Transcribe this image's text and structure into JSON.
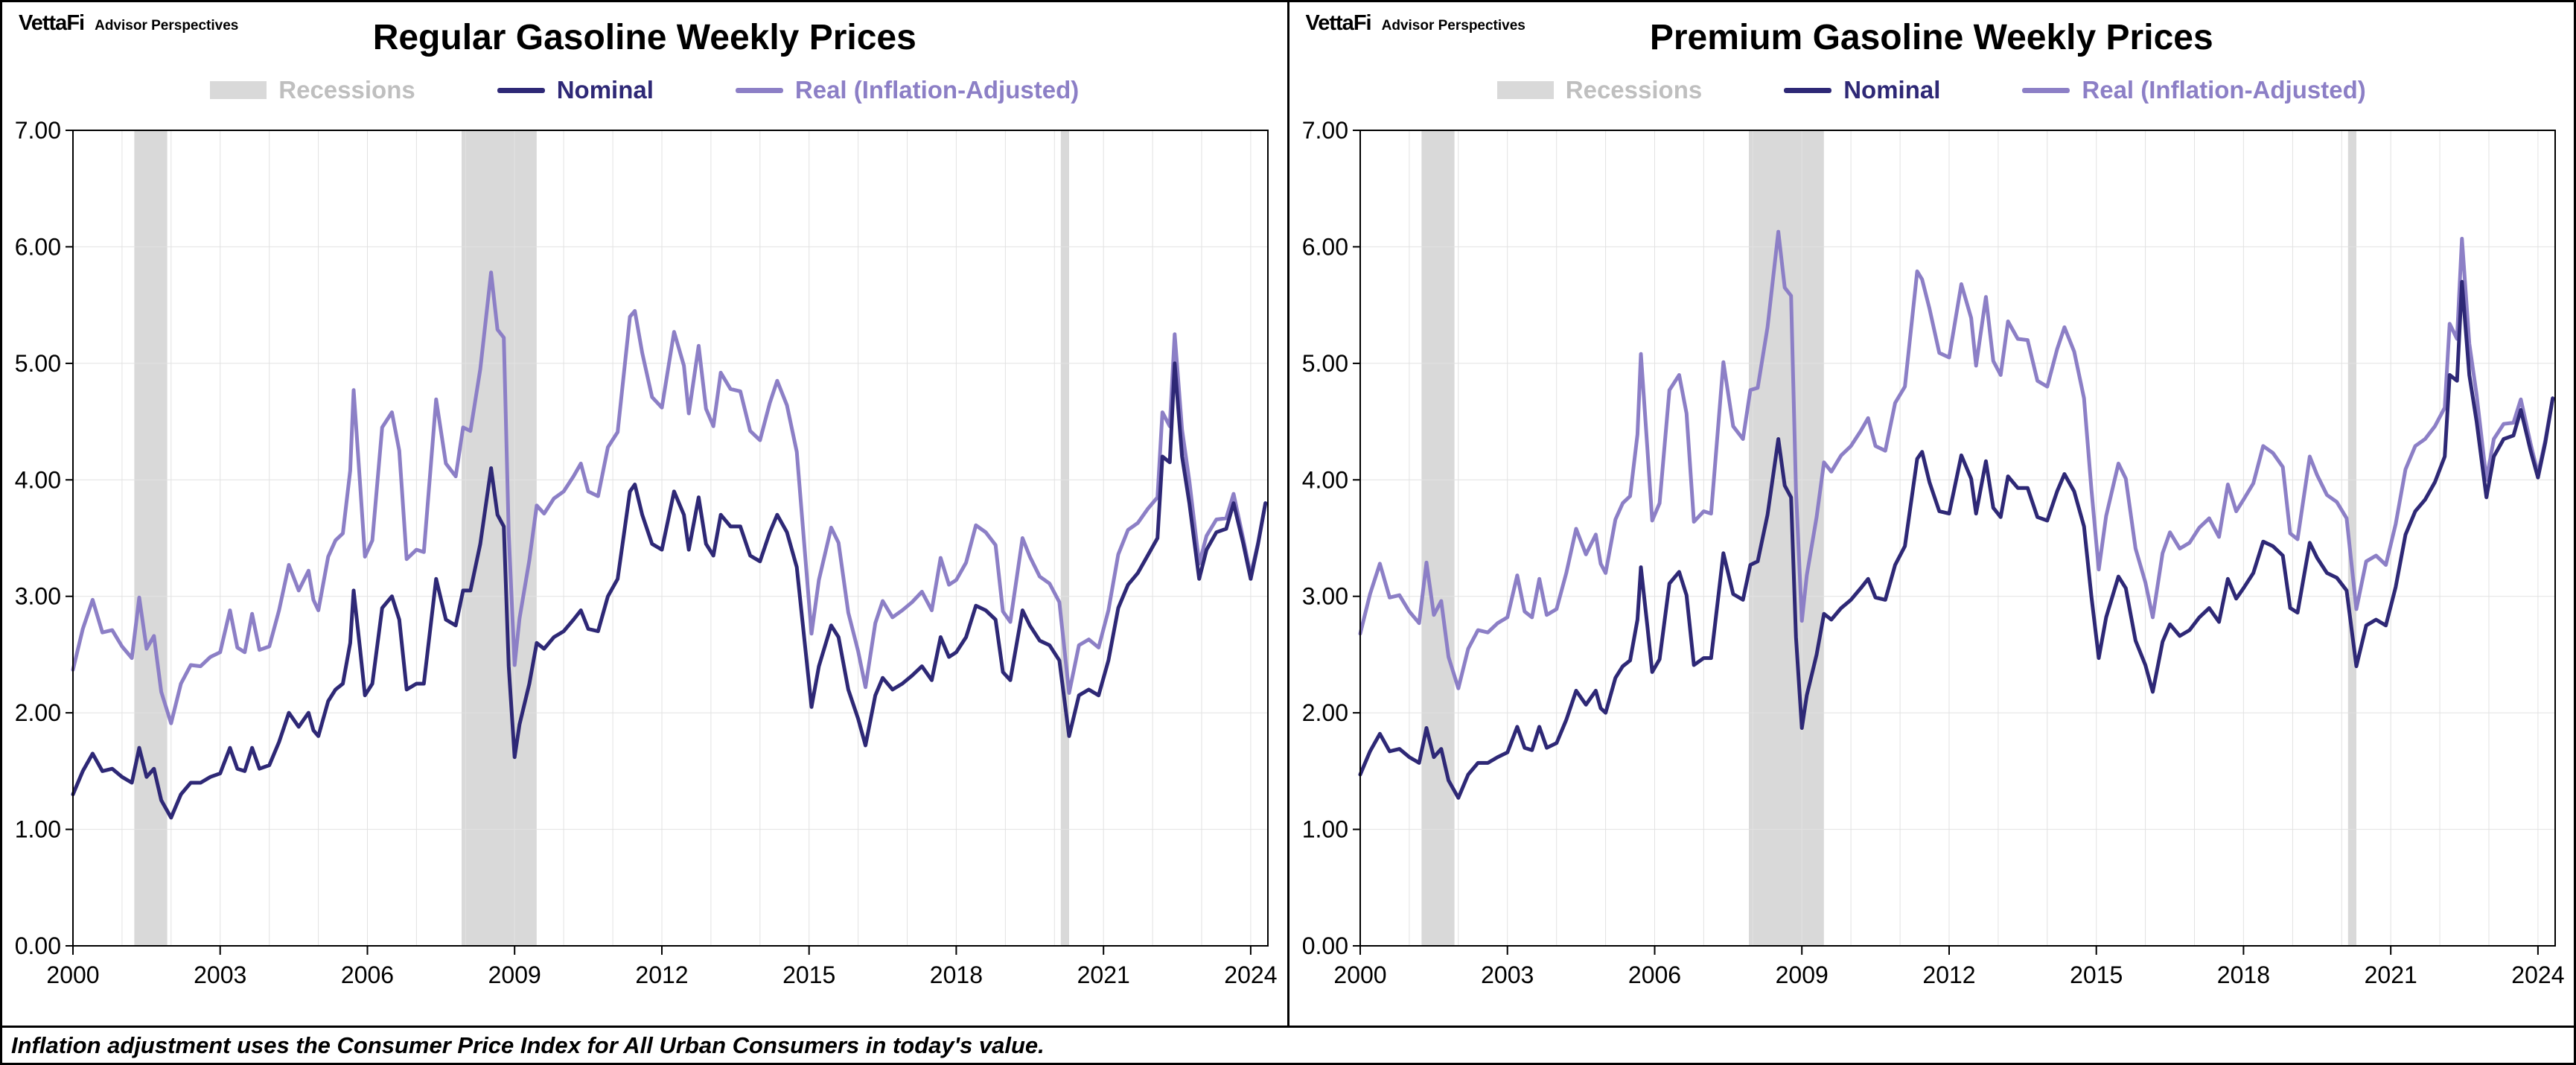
{
  "branding": {
    "logo": "VettaFi",
    "subtitle": "Advisor Perspectives"
  },
  "legend": {
    "recessions": "Recessions",
    "nominal": "Nominal",
    "real": "Real (Inflation-Adjusted)"
  },
  "footer": {
    "note": "Inflation adjustment uses the Consumer Price Index for All Urban Consumers in today's value."
  },
  "colors": {
    "nominal": "#2E2876",
    "real": "#8C7FC6",
    "recession_band": "#D9D9D9",
    "recession_text": "#BFBFBF",
    "grid": "#E2E2E2",
    "axis": "#000000"
  },
  "chart_data": [
    {
      "type": "line",
      "title": "Regular Gasoline Weekly Prices",
      "xlabel": "",
      "ylabel": "",
      "xlim": [
        2000,
        2024.35
      ],
      "ylim": [
        0,
        7
      ],
      "x_ticks": [
        2000,
        2003,
        2006,
        2009,
        2012,
        2015,
        2018,
        2021,
        2024
      ],
      "y_ticks": [
        0,
        1,
        2,
        3,
        4,
        5,
        6,
        7
      ],
      "grid": true,
      "legend_position": "top",
      "recession_bands": [
        [
          2001.25,
          2001.92
        ],
        [
          2007.92,
          2009.45
        ],
        [
          2020.13,
          2020.3
        ]
      ],
      "x": [
        2000.0,
        2000.2,
        2000.4,
        2000.6,
        2000.8,
        2001.0,
        2001.2,
        2001.35,
        2001.5,
        2001.65,
        2001.8,
        2002.0,
        2002.2,
        2002.4,
        2002.6,
        2002.8,
        2003.0,
        2003.2,
        2003.35,
        2003.5,
        2003.65,
        2003.8,
        2004.0,
        2004.2,
        2004.4,
        2004.6,
        2004.8,
        2004.9,
        2005.0,
        2005.2,
        2005.35,
        2005.5,
        2005.65,
        2005.72,
        2005.85,
        2005.95,
        2006.1,
        2006.3,
        2006.5,
        2006.65,
        2006.8,
        2007.0,
        2007.15,
        2007.4,
        2007.6,
        2007.8,
        2007.95,
        2008.1,
        2008.3,
        2008.52,
        2008.65,
        2008.78,
        2008.88,
        2009.0,
        2009.1,
        2009.3,
        2009.45,
        2009.6,
        2009.8,
        2010.0,
        2010.2,
        2010.35,
        2010.5,
        2010.7,
        2010.9,
        2011.1,
        2011.35,
        2011.45,
        2011.6,
        2011.8,
        2012.0,
        2012.25,
        2012.45,
        2012.55,
        2012.75,
        2012.9,
        2013.05,
        2013.2,
        2013.4,
        2013.6,
        2013.8,
        2014.0,
        2014.2,
        2014.35,
        2014.55,
        2014.75,
        2014.9,
        2015.05,
        2015.2,
        2015.45,
        2015.6,
        2015.8,
        2016.0,
        2016.15,
        2016.35,
        2016.5,
        2016.7,
        2016.9,
        2017.1,
        2017.3,
        2017.5,
        2017.68,
        2017.85,
        2018.0,
        2018.2,
        2018.4,
        2018.6,
        2018.8,
        2018.95,
        2019.1,
        2019.35,
        2019.5,
        2019.7,
        2019.9,
        2020.1,
        2020.3,
        2020.5,
        2020.7,
        2020.9,
        2021.1,
        2021.3,
        2021.5,
        2021.7,
        2021.9,
        2022.1,
        2022.2,
        2022.35,
        2022.45,
        2022.6,
        2022.75,
        2022.95,
        2023.1,
        2023.3,
        2023.5,
        2023.65,
        2023.85,
        2024.0,
        2024.15,
        2024.3
      ],
      "series": [
        {
          "name": "Nominal",
          "color_key": "nominal",
          "values": [
            1.3,
            1.5,
            1.65,
            1.5,
            1.52,
            1.45,
            1.4,
            1.7,
            1.45,
            1.52,
            1.25,
            1.1,
            1.3,
            1.4,
            1.4,
            1.45,
            1.48,
            1.7,
            1.52,
            1.5,
            1.7,
            1.52,
            1.55,
            1.75,
            2.0,
            1.88,
            2.0,
            1.85,
            1.8,
            2.1,
            2.2,
            2.25,
            2.6,
            3.05,
            2.55,
            2.15,
            2.25,
            2.9,
            3.0,
            2.8,
            2.2,
            2.25,
            2.25,
            3.15,
            2.8,
            2.75,
            3.05,
            3.05,
            3.45,
            4.1,
            3.7,
            3.6,
            2.4,
            1.62,
            1.9,
            2.25,
            2.6,
            2.55,
            2.65,
            2.7,
            2.8,
            2.88,
            2.72,
            2.7,
            3.0,
            3.15,
            3.9,
            3.96,
            3.7,
            3.45,
            3.4,
            3.9,
            3.7,
            3.4,
            3.85,
            3.45,
            3.35,
            3.7,
            3.6,
            3.6,
            3.35,
            3.3,
            3.55,
            3.7,
            3.55,
            3.25,
            2.65,
            2.05,
            2.4,
            2.75,
            2.65,
            2.2,
            1.95,
            1.72,
            2.15,
            2.3,
            2.2,
            2.25,
            2.32,
            2.4,
            2.28,
            2.65,
            2.48,
            2.52,
            2.65,
            2.92,
            2.88,
            2.8,
            2.35,
            2.28,
            2.88,
            2.75,
            2.62,
            2.58,
            2.45,
            1.8,
            2.15,
            2.2,
            2.15,
            2.45,
            2.9,
            3.1,
            3.2,
            3.35,
            3.5,
            4.2,
            4.15,
            5.0,
            4.2,
            3.8,
            3.15,
            3.4,
            3.55,
            3.58,
            3.8,
            3.45,
            3.15,
            3.45,
            3.8
          ]
        },
        {
          "name": "Real (Inflation-Adjusted)",
          "color_key": "real",
          "values": [
            2.37,
            2.72,
            2.97,
            2.69,
            2.71,
            2.57,
            2.47,
            2.99,
            2.55,
            2.66,
            2.18,
            1.91,
            2.25,
            2.41,
            2.4,
            2.48,
            2.52,
            2.88,
            2.56,
            2.52,
            2.85,
            2.54,
            2.57,
            2.88,
            3.27,
            3.05,
            3.22,
            2.97,
            2.88,
            3.34,
            3.48,
            3.54,
            4.08,
            4.77,
            3.97,
            3.34,
            3.48,
            4.45,
            4.58,
            4.25,
            3.32,
            3.4,
            3.38,
            4.69,
            4.14,
            4.03,
            4.45,
            4.42,
            4.95,
            5.78,
            5.29,
            5.22,
            3.54,
            2.41,
            2.81,
            3.31,
            3.78,
            3.71,
            3.84,
            3.9,
            4.03,
            4.14,
            3.9,
            3.86,
            4.28,
            4.41,
            5.4,
            5.45,
            5.09,
            4.71,
            4.62,
            5.27,
            4.98,
            4.57,
            5.15,
            4.61,
            4.46,
            4.92,
            4.78,
            4.76,
            4.42,
            4.34,
            4.66,
            4.85,
            4.64,
            4.24,
            3.46,
            2.68,
            3.14,
            3.59,
            3.46,
            2.86,
            2.53,
            2.22,
            2.77,
            2.96,
            2.82,
            2.88,
            2.95,
            3.04,
            2.88,
            3.33,
            3.1,
            3.14,
            3.29,
            3.61,
            3.55,
            3.44,
            2.87,
            2.78,
            3.5,
            3.34,
            3.17,
            3.11,
            2.95,
            2.17,
            2.58,
            2.63,
            2.56,
            2.88,
            3.36,
            3.57,
            3.63,
            3.75,
            3.85,
            4.58,
            4.46,
            5.25,
            4.43,
            3.99,
            3.28,
            3.52,
            3.66,
            3.67,
            3.88,
            3.49,
            3.18,
            3.46,
            3.8
          ]
        }
      ]
    },
    {
      "type": "line",
      "title": "Premium Gasoline Weekly Prices",
      "xlabel": "",
      "ylabel": "",
      "xlim": [
        2000,
        2024.35
      ],
      "ylim": [
        0,
        7
      ],
      "x_ticks": [
        2000,
        2003,
        2006,
        2009,
        2012,
        2015,
        2018,
        2021,
        2024
      ],
      "y_ticks": [
        0,
        1,
        2,
        3,
        4,
        5,
        6,
        7
      ],
      "grid": true,
      "legend_position": "top",
      "recession_bands": [
        [
          2001.25,
          2001.92
        ],
        [
          2007.92,
          2009.45
        ],
        [
          2020.13,
          2020.3
        ]
      ],
      "x": [
        2000.0,
        2000.2,
        2000.4,
        2000.6,
        2000.8,
        2001.0,
        2001.2,
        2001.35,
        2001.5,
        2001.65,
        2001.8,
        2002.0,
        2002.2,
        2002.4,
        2002.6,
        2002.8,
        2003.0,
        2003.2,
        2003.35,
        2003.5,
        2003.65,
        2003.8,
        2004.0,
        2004.2,
        2004.4,
        2004.6,
        2004.8,
        2004.9,
        2005.0,
        2005.2,
        2005.35,
        2005.5,
        2005.65,
        2005.72,
        2005.85,
        2005.95,
        2006.1,
        2006.3,
        2006.5,
        2006.65,
        2006.8,
        2007.0,
        2007.15,
        2007.4,
        2007.6,
        2007.8,
        2007.95,
        2008.1,
        2008.3,
        2008.52,
        2008.65,
        2008.78,
        2008.88,
        2009.0,
        2009.1,
        2009.3,
        2009.45,
        2009.6,
        2009.8,
        2010.0,
        2010.2,
        2010.35,
        2010.5,
        2010.7,
        2010.9,
        2011.1,
        2011.35,
        2011.45,
        2011.6,
        2011.8,
        2012.0,
        2012.25,
        2012.45,
        2012.55,
        2012.75,
        2012.9,
        2013.05,
        2013.2,
        2013.4,
        2013.6,
        2013.8,
        2014.0,
        2014.2,
        2014.35,
        2014.55,
        2014.75,
        2014.9,
        2015.05,
        2015.2,
        2015.45,
        2015.6,
        2015.8,
        2016.0,
        2016.15,
        2016.35,
        2016.5,
        2016.7,
        2016.9,
        2017.1,
        2017.3,
        2017.5,
        2017.68,
        2017.85,
        2018.0,
        2018.2,
        2018.4,
        2018.6,
        2018.8,
        2018.95,
        2019.1,
        2019.35,
        2019.5,
        2019.7,
        2019.9,
        2020.1,
        2020.3,
        2020.5,
        2020.7,
        2020.9,
        2021.1,
        2021.3,
        2021.5,
        2021.7,
        2021.9,
        2022.1,
        2022.2,
        2022.35,
        2022.45,
        2022.6,
        2022.75,
        2022.95,
        2023.1,
        2023.3,
        2023.5,
        2023.65,
        2023.85,
        2024.0,
        2024.15,
        2024.3
      ],
      "series": [
        {
          "name": "Nominal",
          "color_key": "nominal",
          "values": [
            1.47,
            1.67,
            1.82,
            1.67,
            1.69,
            1.62,
            1.57,
            1.87,
            1.62,
            1.69,
            1.42,
            1.27,
            1.47,
            1.57,
            1.57,
            1.62,
            1.66,
            1.88,
            1.7,
            1.68,
            1.88,
            1.7,
            1.74,
            1.94,
            2.19,
            2.07,
            2.19,
            2.04,
            2.0,
            2.3,
            2.4,
            2.45,
            2.8,
            3.25,
            2.75,
            2.35,
            2.46,
            3.11,
            3.21,
            3.01,
            2.41,
            2.47,
            2.47,
            3.37,
            3.02,
            2.97,
            3.27,
            3.3,
            3.7,
            4.35,
            3.95,
            3.85,
            2.65,
            1.87,
            2.15,
            2.5,
            2.85,
            2.8,
            2.9,
            2.97,
            3.07,
            3.15,
            2.99,
            2.97,
            3.27,
            3.43,
            4.18,
            4.24,
            3.98,
            3.73,
            3.71,
            4.21,
            4.01,
            3.71,
            4.16,
            3.76,
            3.68,
            4.03,
            3.93,
            3.93,
            3.68,
            3.65,
            3.9,
            4.05,
            3.9,
            3.6,
            3.0,
            2.47,
            2.82,
            3.17,
            3.07,
            2.62,
            2.41,
            2.18,
            2.61,
            2.76,
            2.66,
            2.71,
            2.82,
            2.9,
            2.78,
            3.15,
            2.98,
            3.07,
            3.2,
            3.47,
            3.43,
            3.35,
            2.9,
            2.86,
            3.46,
            3.33,
            3.2,
            3.16,
            3.05,
            2.4,
            2.75,
            2.8,
            2.75,
            3.08,
            3.53,
            3.73,
            3.83,
            3.98,
            4.2,
            4.9,
            4.85,
            5.7,
            4.9,
            4.5,
            3.85,
            4.2,
            4.35,
            4.38,
            4.6,
            4.25,
            4.02,
            4.32,
            4.7
          ]
        },
        {
          "name": "Real (Inflation-Adjusted)",
          "color_key": "real",
          "values": [
            2.68,
            3.02,
            3.28,
            2.99,
            3.01,
            2.87,
            2.77,
            3.29,
            2.84,
            2.96,
            2.48,
            2.21,
            2.55,
            2.71,
            2.69,
            2.77,
            2.82,
            3.18,
            2.87,
            2.82,
            3.15,
            2.84,
            2.89,
            3.2,
            3.58,
            3.36,
            3.53,
            3.28,
            3.2,
            3.66,
            3.8,
            3.86,
            4.39,
            5.08,
            4.28,
            3.65,
            3.8,
            4.77,
            4.9,
            4.57,
            3.64,
            3.73,
            3.71,
            5.01,
            4.46,
            4.35,
            4.77,
            4.79,
            5.31,
            6.13,
            5.65,
            5.58,
            3.91,
            2.79,
            3.18,
            3.68,
            4.15,
            4.07,
            4.21,
            4.29,
            4.42,
            4.53,
            4.29,
            4.25,
            4.66,
            4.8,
            5.79,
            5.72,
            5.47,
            5.09,
            5.05,
            5.68,
            5.39,
            4.98,
            5.57,
            5.02,
            4.9,
            5.36,
            5.21,
            5.2,
            4.85,
            4.8,
            5.12,
            5.31,
            5.1,
            4.7,
            3.92,
            3.23,
            3.69,
            4.14,
            4.01,
            3.41,
            3.12,
            2.82,
            3.37,
            3.55,
            3.41,
            3.46,
            3.59,
            3.67,
            3.51,
            3.96,
            3.73,
            3.83,
            3.97,
            4.29,
            4.23,
            4.11,
            3.54,
            3.49,
            4.2,
            4.04,
            3.87,
            3.81,
            3.67,
            2.89,
            3.3,
            3.35,
            3.27,
            3.62,
            4.09,
            4.29,
            4.35,
            4.46,
            4.62,
            5.34,
            5.21,
            6.07,
            5.17,
            4.73,
            4.0,
            4.35,
            4.48,
            4.49,
            4.69,
            4.31,
            4.05,
            4.34,
            4.7
          ]
        }
      ]
    }
  ]
}
